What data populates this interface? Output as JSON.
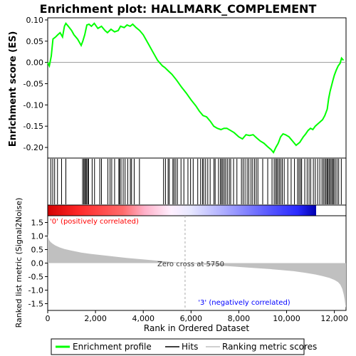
{
  "title": "Enrichment plot: HALLMARK_COMPLEMENT",
  "chart_data": [
    {
      "type": "line",
      "panel": "enrichment",
      "ylabel": "Enrichment score (ES)",
      "ylim": [
        -0.225,
        0.105
      ],
      "yticks": [
        "0.10",
        "0.05",
        "0.00",
        "-0.05",
        "-0.10",
        "-0.15",
        "-0.20"
      ],
      "ytick_values": [
        0.1,
        0.05,
        0.0,
        -0.05,
        -0.1,
        -0.15,
        -0.2
      ],
      "xlim": [
        0,
        12488
      ],
      "grid": false,
      "baseline": 0,
      "series": [
        {
          "name": "Enrichment profile",
          "color": "#00ff00",
          "x": [
            0,
            70,
            150,
            220,
            330,
            420,
            520,
            620,
            700,
            760,
            860,
            1000,
            1100,
            1250,
            1400,
            1470,
            1550,
            1640,
            1730,
            1830,
            1950,
            2100,
            2250,
            2400,
            2500,
            2650,
            2800,
            2950,
            3050,
            3200,
            3320,
            3450,
            3560,
            3700,
            3850,
            4000,
            4200,
            4400,
            4600,
            4800,
            4900,
            5050,
            5200,
            5400,
            5600,
            5800,
            6000,
            6200,
            6350,
            6500,
            6650,
            6800,
            6950,
            7100,
            7250,
            7380,
            7500,
            7650,
            7800,
            8000,
            8150,
            8300,
            8450,
            8600,
            8750,
            8900,
            9050,
            9200,
            9350,
            9450,
            9550,
            9650,
            9750,
            9850,
            9950,
            10100,
            10250,
            10400,
            10550,
            10700,
            10800,
            10900,
            11000,
            11100,
            11200,
            11300,
            11400,
            11500,
            11600,
            11700,
            11760,
            11820,
            11880,
            11940,
            12000,
            12080,
            12160,
            12240,
            12300,
            12380
          ],
          "y": [
            0.0,
            -0.008,
            0.015,
            0.055,
            0.06,
            0.065,
            0.07,
            0.06,
            0.085,
            0.092,
            0.085,
            0.075,
            0.065,
            0.055,
            0.04,
            0.05,
            0.065,
            0.088,
            0.09,
            0.085,
            0.092,
            0.08,
            0.085,
            0.075,
            0.07,
            0.078,
            0.072,
            0.075,
            0.085,
            0.082,
            0.088,
            0.085,
            0.09,
            0.082,
            0.075,
            0.065,
            0.045,
            0.025,
            0.005,
            -0.008,
            -0.012,
            -0.02,
            -0.028,
            -0.042,
            -0.058,
            -0.072,
            -0.088,
            -0.102,
            -0.115,
            -0.125,
            -0.128,
            -0.138,
            -0.15,
            -0.155,
            -0.158,
            -0.155,
            -0.155,
            -0.16,
            -0.165,
            -0.175,
            -0.18,
            -0.17,
            -0.172,
            -0.17,
            -0.178,
            -0.185,
            -0.19,
            -0.198,
            -0.205,
            -0.212,
            -0.2,
            -0.19,
            -0.175,
            -0.168,
            -0.17,
            -0.175,
            -0.185,
            -0.195,
            -0.188,
            -0.175,
            -0.168,
            -0.16,
            -0.155,
            -0.158,
            -0.15,
            -0.145,
            -0.14,
            -0.135,
            -0.125,
            -0.11,
            -0.085,
            -0.068,
            -0.055,
            -0.042,
            -0.03,
            -0.018,
            -0.008,
            -0.002,
            0.01,
            0.005
          ]
        }
      ]
    },
    {
      "type": "scatter",
      "panel": "hits",
      "series": [
        {
          "name": "Hits",
          "color": "#000000",
          "x": [
            130,
            210,
            290,
            410,
            580,
            760,
            1460,
            1510,
            1550,
            1590,
            1630,
            1680,
            1710,
            1860,
            1960,
            2180,
            2250,
            2520,
            2610,
            2680,
            2800,
            2980,
            3010,
            3070,
            3160,
            3240,
            3350,
            3460,
            3510,
            3620,
            3840,
            4850,
            4930,
            5040,
            5090,
            5240,
            5290,
            5360,
            5430,
            5580,
            5700,
            5870,
            5980,
            6090,
            6280,
            6400,
            6480,
            6530,
            6610,
            6700,
            6800,
            6960,
            7010,
            7150,
            7230,
            7280,
            7330,
            7390,
            7450,
            7520,
            7600,
            7660,
            7780,
            7920,
            8110,
            8180,
            8260,
            8350,
            8420,
            8510,
            8580,
            8660,
            8730,
            8800,
            9000,
            9210,
            9390,
            9480,
            9540,
            9590,
            9640,
            9700,
            9760,
            9820,
            9900,
            10050,
            10190,
            10330,
            10460,
            10520,
            10580,
            10630,
            10760,
            10860,
            10940,
            11010,
            11120,
            11200,
            11300,
            11390,
            11480,
            11540,
            11600,
            11650,
            11700,
            11740,
            11790,
            11840,
            11890,
            11940,
            11980,
            12040,
            12110,
            12180,
            12290
          ]
        }
      ]
    },
    {
      "type": "area",
      "panel": "ranked_metric",
      "ylabel": "Ranked list metric (Signal2Noise)",
      "xlabel": "Rank in Ordered Dataset",
      "ylim": [
        -1.75,
        1.75
      ],
      "yticks": [
        "1.5",
        "1.0",
        "0.5",
        "0.0",
        "-0.5",
        "-1.0",
        "-1.5"
      ],
      "ytick_values": [
        1.5,
        1.0,
        0.5,
        0.0,
        -0.5,
        -1.0,
        -1.5
      ],
      "xticks": [
        "0",
        "2,000",
        "4,000",
        "6,000",
        "8,000",
        "10,000",
        "12,000"
      ],
      "xtick_values": [
        0,
        2000,
        4000,
        6000,
        8000,
        10000,
        12000
      ],
      "xlim": [
        0,
        12488
      ],
      "series": [
        {
          "name": "Ranking metric scores",
          "color": "#c0c0c0",
          "x": [
            0,
            20,
            60,
            120,
            200,
            320,
            500,
            700,
            1000,
            1400,
            1800,
            2300,
            2800,
            3300,
            3800,
            4300,
            4800,
            5300,
            5750,
            6300,
            6800,
            7300,
            7800,
            8300,
            8800,
            9300,
            9800,
            10300,
            10800,
            11200,
            11500,
            11800,
            12000,
            12150,
            12250,
            12330,
            12390,
            12430,
            12460,
            12488
          ],
          "y": [
            1.1,
            0.95,
            0.85,
            0.78,
            0.72,
            0.65,
            0.58,
            0.52,
            0.46,
            0.39,
            0.34,
            0.29,
            0.24,
            0.19,
            0.15,
            0.11,
            0.07,
            0.03,
            0.0,
            -0.04,
            -0.07,
            -0.1,
            -0.13,
            -0.16,
            -0.19,
            -0.22,
            -0.26,
            -0.3,
            -0.36,
            -0.42,
            -0.48,
            -0.55,
            -0.62,
            -0.7,
            -0.8,
            -0.95,
            -1.15,
            -1.35,
            -1.55,
            -1.65
          ]
        }
      ],
      "annotations": [
        {
          "text": "'0' (positively correlated)",
          "color": "#ff0000"
        },
        {
          "text": "Zero cross at 5750",
          "x": 5750
        },
        {
          "text": "'3' (negatively correlated)",
          "color": "#0000ff"
        }
      ]
    }
  ],
  "legend": {
    "position": "bottom",
    "items": [
      {
        "label": "Enrichment profile",
        "color": "#00ff00"
      },
      {
        "label": "Hits",
        "color": "#000000"
      },
      {
        "label": "Ranking metric scores",
        "color": "#c0c0c0"
      }
    ]
  }
}
